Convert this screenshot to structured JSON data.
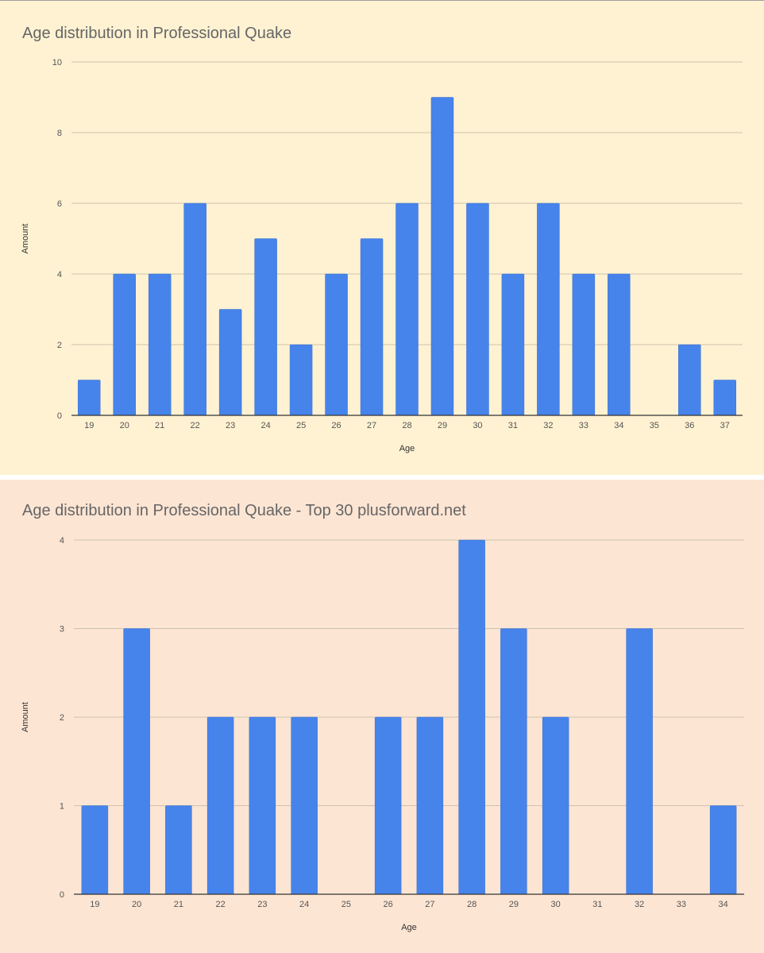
{
  "colors": {
    "bar": "#4684EC",
    "grid": "#CCC2AE",
    "axis": "#333333",
    "tick_text": "#555555",
    "title_text": "#666666",
    "chart1_background": "#FFF2D2",
    "chart2_background": "#FDE5D3"
  },
  "chart_data": [
    {
      "type": "bar",
      "title": "Age distribution in Professional Quake",
      "xlabel": "Age",
      "ylabel": "Amount",
      "categories": [
        "19",
        "20",
        "21",
        "22",
        "23",
        "24",
        "25",
        "26",
        "27",
        "28",
        "29",
        "30",
        "31",
        "32",
        "33",
        "34",
        "35",
        "36",
        "37"
      ],
      "values": [
        1,
        4,
        4,
        6,
        3,
        5,
        2,
        4,
        5,
        6,
        9,
        6,
        4,
        6,
        4,
        4,
        0,
        2,
        1
      ],
      "ylim": [
        0,
        10
      ],
      "yticks": [
        0,
        2,
        4,
        6,
        8,
        10
      ],
      "grid": true,
      "legend": "none"
    },
    {
      "type": "bar",
      "title": "Age distribution in Professional Quake - Top 30 plusforward.net",
      "xlabel": "Age",
      "ylabel": "Amount",
      "categories": [
        "19",
        "20",
        "21",
        "22",
        "23",
        "24",
        "25",
        "26",
        "27",
        "28",
        "29",
        "30",
        "31",
        "32",
        "33",
        "34"
      ],
      "values": [
        1,
        3,
        1,
        2,
        2,
        2,
        0,
        2,
        2,
        4,
        3,
        2,
        0,
        3,
        0,
        1
      ],
      "ylim": [
        0,
        4
      ],
      "yticks": [
        0,
        1,
        2,
        3,
        4
      ],
      "grid": true,
      "legend": "none"
    }
  ]
}
